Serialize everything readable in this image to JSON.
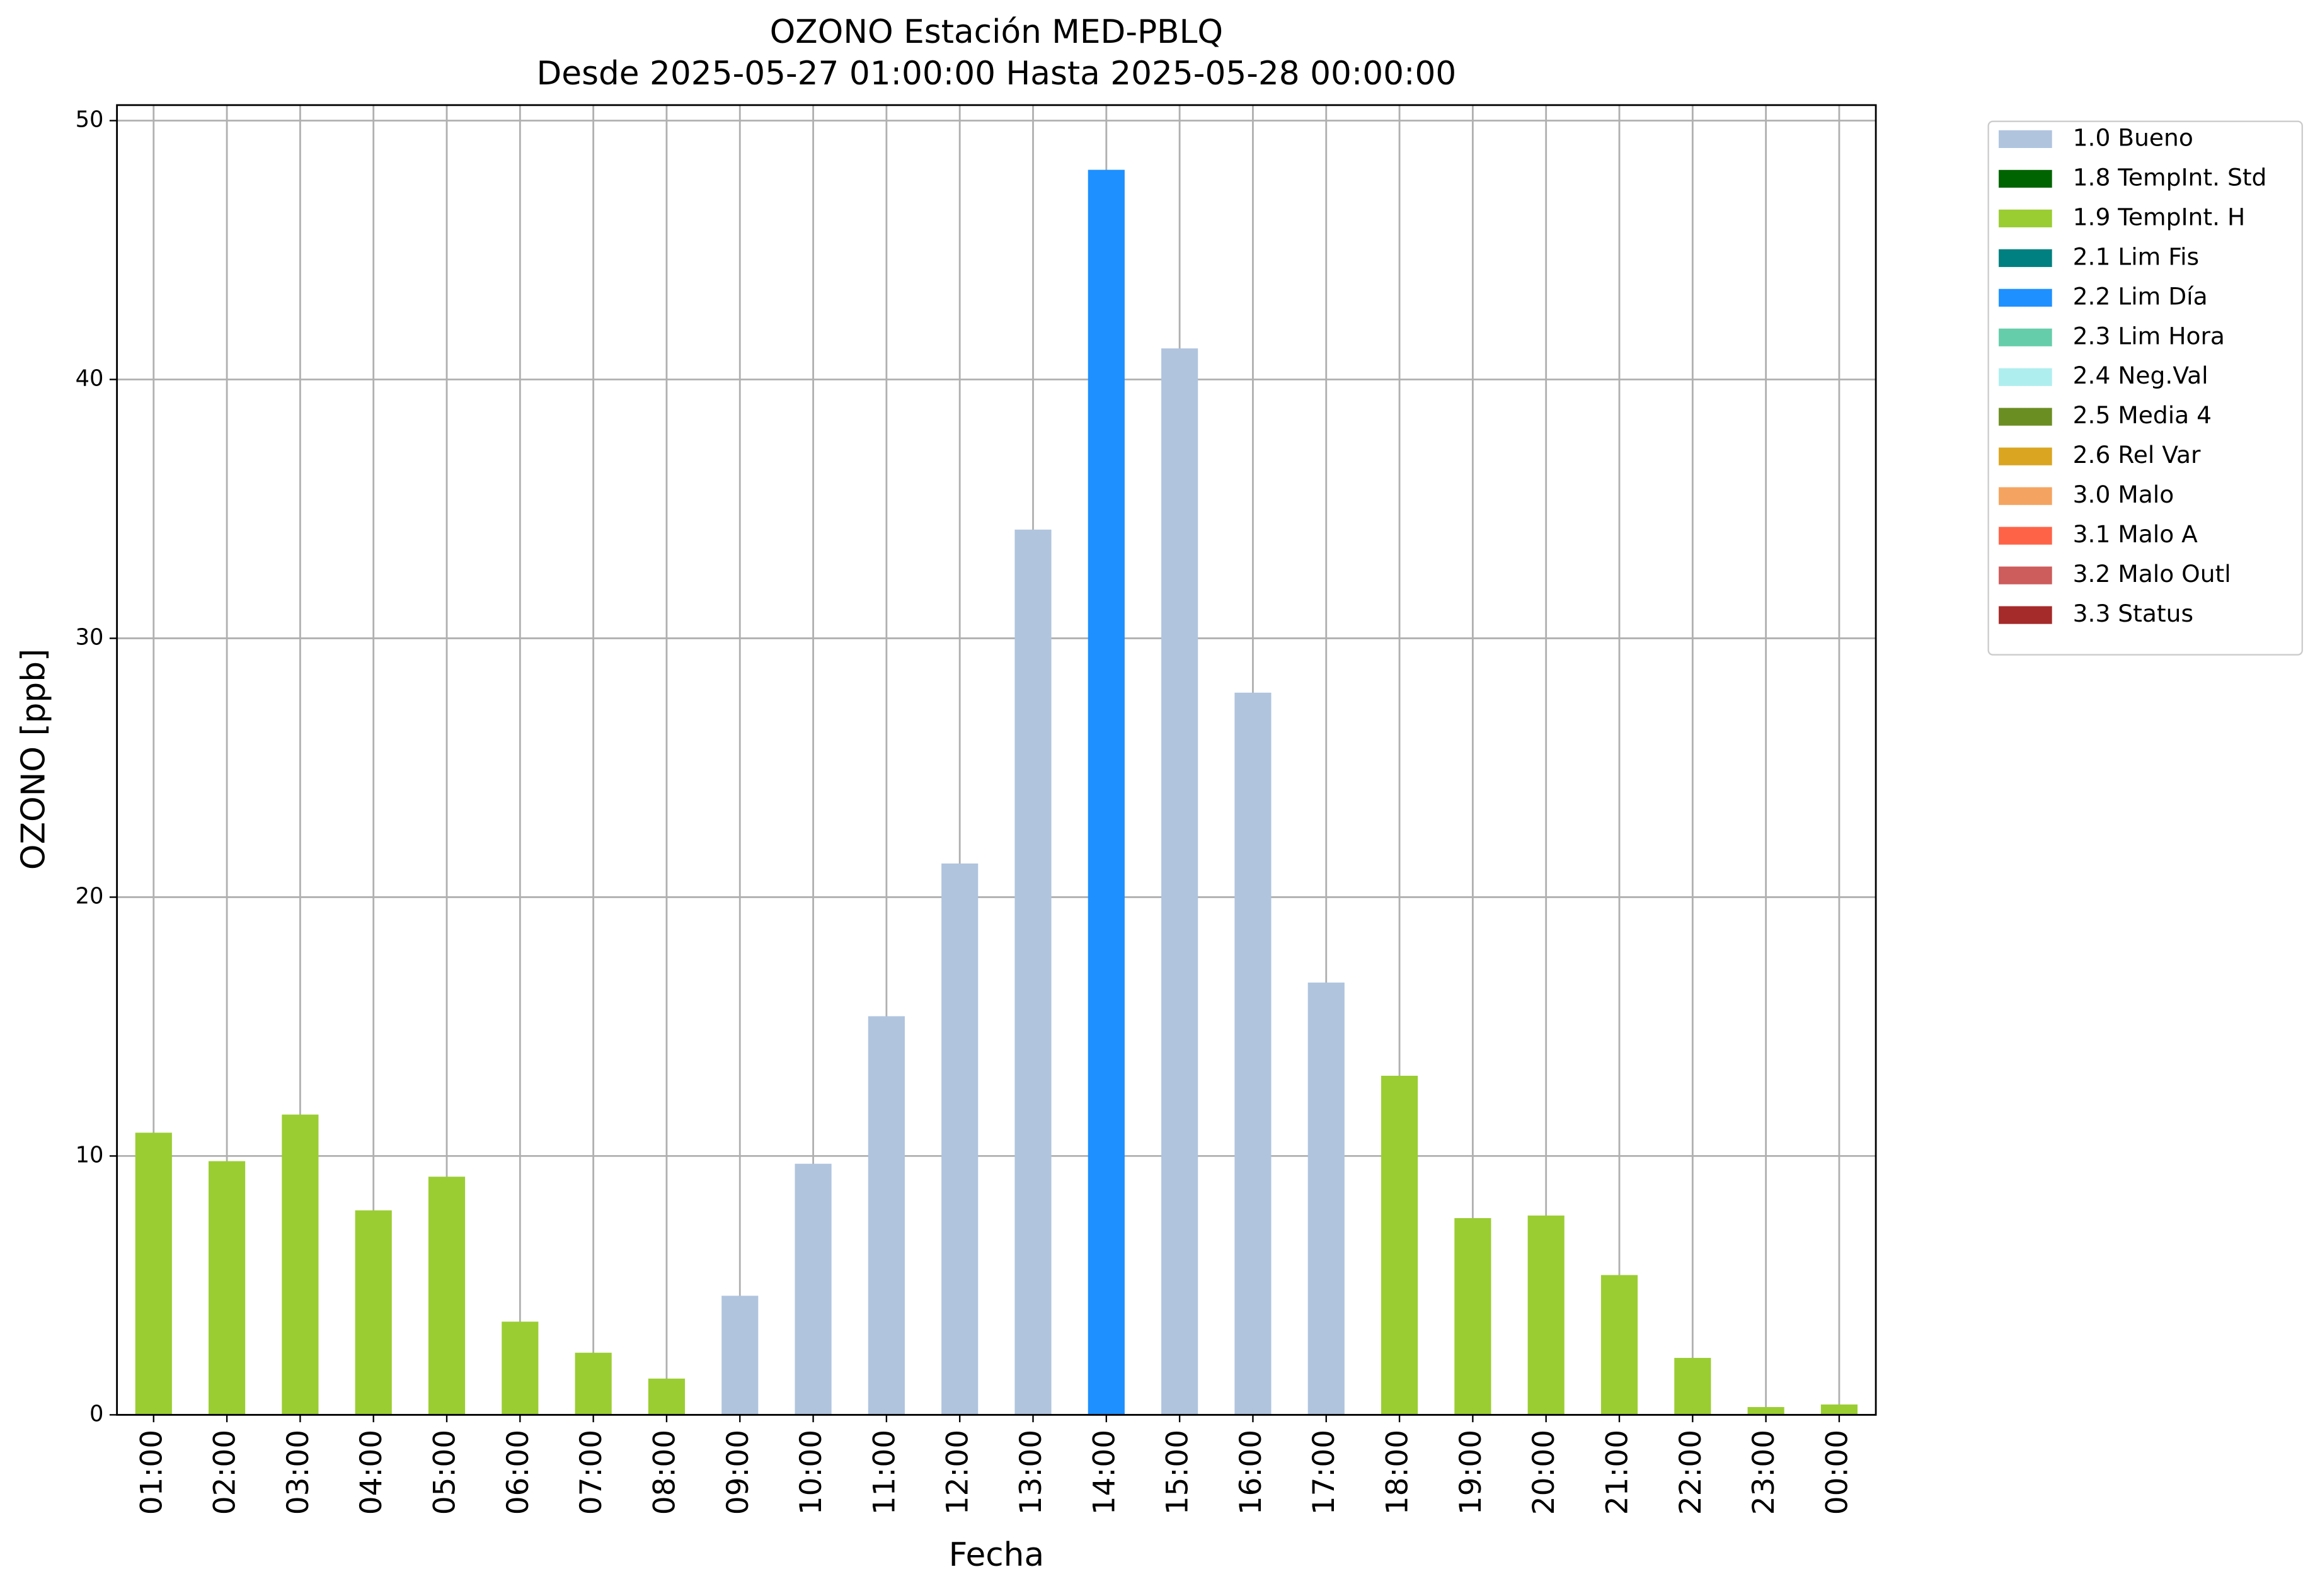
{
  "chart_data": {
    "type": "bar",
    "stacked": true,
    "title": "OZONO Estación MED-PBLQ",
    "subtitle": "Desde 2025-05-27 01:00:00 Hasta 2025-05-28 00:00:00",
    "x_label": "Fecha",
    "y_label": "OZONO [ppb]",
    "categories": [
      "01:00",
      "02:00",
      "03:00",
      "04:00",
      "05:00",
      "06:00",
      "07:00",
      "08:00",
      "09:00",
      "10:00",
      "11:00",
      "12:00",
      "13:00",
      "14:00",
      "15:00",
      "16:00",
      "17:00",
      "18:00",
      "19:00",
      "20:00",
      "21:00",
      "22:00",
      "23:00",
      "00:00"
    ],
    "series": [
      {
        "name": "1.0 Bueno",
        "color": "#b0c4de",
        "values": [
          null,
          null,
          null,
          null,
          null,
          null,
          null,
          null,
          4.6,
          9.7,
          15.4,
          21.3,
          34.2,
          null,
          41.2,
          27.9,
          16.7,
          null,
          null,
          null,
          null,
          null,
          null,
          null
        ]
      },
      {
        "name": "1.8 TempInt. Std",
        "color": "#006400",
        "values": [
          null,
          null,
          null,
          null,
          null,
          null,
          null,
          null,
          null,
          null,
          null,
          null,
          null,
          null,
          null,
          null,
          null,
          null,
          null,
          null,
          null,
          null,
          null,
          null
        ]
      },
      {
        "name": "1.9 TempInt. H",
        "color": "#9acd32",
        "values": [
          10.9,
          9.8,
          11.6,
          7.9,
          9.2,
          3.6,
          2.4,
          1.4,
          null,
          null,
          null,
          null,
          null,
          null,
          null,
          null,
          null,
          13.1,
          7.6,
          7.7,
          5.4,
          2.2,
          0.3,
          0.4
        ]
      },
      {
        "name": "2.1 Lim Fis",
        "color": "#008080",
        "values": [
          null,
          null,
          null,
          null,
          null,
          null,
          null,
          null,
          null,
          null,
          null,
          null,
          null,
          null,
          null,
          null,
          null,
          null,
          null,
          null,
          null,
          null,
          null,
          null
        ]
      },
      {
        "name": "2.2 Lim Día",
        "color": "#1e90ff",
        "values": [
          null,
          null,
          null,
          null,
          null,
          null,
          null,
          null,
          null,
          null,
          null,
          null,
          null,
          48.1,
          null,
          null,
          null,
          null,
          null,
          null,
          null,
          null,
          null,
          null
        ]
      },
      {
        "name": "2.3 Lim Hora",
        "color": "#66cdaa",
        "values": [
          null,
          null,
          null,
          null,
          null,
          null,
          null,
          null,
          null,
          null,
          null,
          null,
          null,
          null,
          null,
          null,
          null,
          null,
          null,
          null,
          null,
          null,
          null,
          null
        ]
      },
      {
        "name": "2.4 Neg.Val",
        "color": "#afeeee",
        "values": [
          null,
          null,
          null,
          null,
          null,
          null,
          null,
          null,
          null,
          null,
          null,
          null,
          null,
          null,
          null,
          null,
          null,
          null,
          null,
          null,
          null,
          null,
          null,
          null
        ]
      },
      {
        "name": "2.5 Media 4",
        "color": "#6b8e23",
        "values": [
          null,
          null,
          null,
          null,
          null,
          null,
          null,
          null,
          null,
          null,
          null,
          null,
          null,
          null,
          null,
          null,
          null,
          null,
          null,
          null,
          null,
          null,
          null,
          null
        ]
      },
      {
        "name": "2.6 Rel Var",
        "color": "#daa520",
        "values": [
          null,
          null,
          null,
          null,
          null,
          null,
          null,
          null,
          null,
          null,
          null,
          null,
          null,
          null,
          null,
          null,
          null,
          null,
          null,
          null,
          null,
          null,
          null,
          null
        ]
      },
      {
        "name": "3.0 Malo",
        "color": "#f4a460",
        "values": [
          null,
          null,
          null,
          null,
          null,
          null,
          null,
          null,
          null,
          null,
          null,
          null,
          null,
          null,
          null,
          null,
          null,
          null,
          null,
          null,
          null,
          null,
          null,
          null
        ]
      },
      {
        "name": "3.1 Malo A",
        "color": "#ff6347",
        "values": [
          null,
          null,
          null,
          null,
          null,
          null,
          null,
          null,
          null,
          null,
          null,
          null,
          null,
          null,
          null,
          null,
          null,
          null,
          null,
          null,
          null,
          null,
          null,
          null
        ]
      },
      {
        "name": "3.2 Malo Outl",
        "color": "#cd5c5c",
        "values": [
          null,
          null,
          null,
          null,
          null,
          null,
          null,
          null,
          null,
          null,
          null,
          null,
          null,
          null,
          null,
          null,
          null,
          null,
          null,
          null,
          null,
          null,
          null,
          null
        ]
      },
      {
        "name": "3.3 Status",
        "color": "#a52a2a",
        "values": [
          null,
          null,
          null,
          null,
          null,
          null,
          null,
          null,
          null,
          null,
          null,
          null,
          null,
          null,
          null,
          null,
          null,
          null,
          null,
          null,
          null,
          null,
          null,
          null
        ]
      }
    ],
    "ylim": [
      0,
      50.6
    ],
    "yticks": [
      0,
      10,
      20,
      30,
      40,
      50
    ],
    "grid": true,
    "legend": "outside upper right"
  }
}
